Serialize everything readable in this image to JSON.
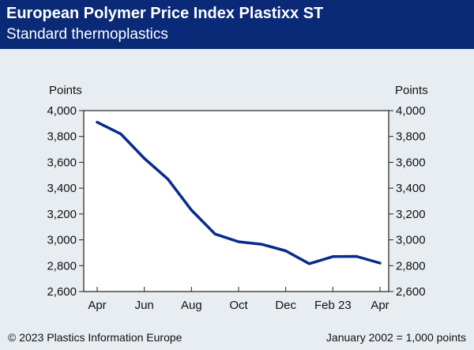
{
  "header": {
    "title": "European Polymer Price Index Plastixx ST",
    "subtitle": "Standard thermoplastics"
  },
  "footer": {
    "copyright": "© 2023 Plastics Information Europe",
    "baseline_note": "January 2002 = 1,000 points"
  },
  "colors": {
    "header_bg": "#0a2a78",
    "series_line": "#0a2a8c",
    "plot_bg": "#ffffff",
    "page_bg": "#e8edf2"
  },
  "chart_data": {
    "type": "line",
    "title": "European Polymer Price Index Plastixx ST",
    "subtitle": "Standard thermoplastics",
    "ylabel_left": "Points",
    "ylabel_right": "Points",
    "ylim": [
      2600,
      4000
    ],
    "yticks": [
      2600,
      2800,
      3000,
      3200,
      3400,
      3600,
      3800,
      4000
    ],
    "ytick_labels": [
      "2,600",
      "2,800",
      "3,000",
      "3,200",
      "3,400",
      "3,600",
      "3,800",
      "4,000"
    ],
    "xtick_labels": [
      "Apr",
      "Jun",
      "Aug",
      "Oct",
      "Dec",
      "Feb 23",
      "Apr"
    ],
    "grid": false,
    "x": [
      "Apr 2022",
      "May 2022",
      "Jun 2022",
      "Jul 2022",
      "Aug 2022",
      "Sep 2022",
      "Oct 2022",
      "Nov 2022",
      "Dec 2022",
      "Jan 2023",
      "Feb 2023",
      "Mar 2023",
      "Apr 2023"
    ],
    "series": [
      {
        "values": [
          3910,
          3820,
          3630,
          3470,
          3230,
          3045,
          2985,
          2965,
          2915,
          2815,
          2870,
          2872,
          2820
        ]
      }
    ]
  }
}
